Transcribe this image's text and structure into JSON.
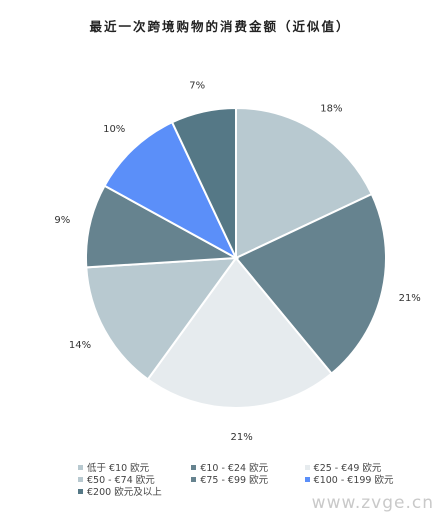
{
  "chart_data": {
    "type": "pie",
    "title": "最近一次跨境购物的消费金额（近似值）",
    "categories": [
      "低于 €10 欧元",
      "€10 - €24 欧元",
      "€25 - €49 欧元",
      "€50 - €74 欧元",
      "€75 - €99 欧元",
      "€100 - €199 欧元",
      "€200 欧元及以上"
    ],
    "values": [
      18,
      21,
      21,
      14,
      9,
      10,
      7
    ],
    "labels": [
      "18%",
      "21%",
      "21%",
      "14%",
      "9%",
      "10%",
      "7%"
    ],
    "colors": [
      "#b8c9d0",
      "#66838f",
      "#e6ebee",
      "#b8c9d0",
      "#66838f",
      "#5b8ff9",
      "#557886"
    ],
    "legend_position": "bottom"
  },
  "watermark": "www.zvge.cn"
}
